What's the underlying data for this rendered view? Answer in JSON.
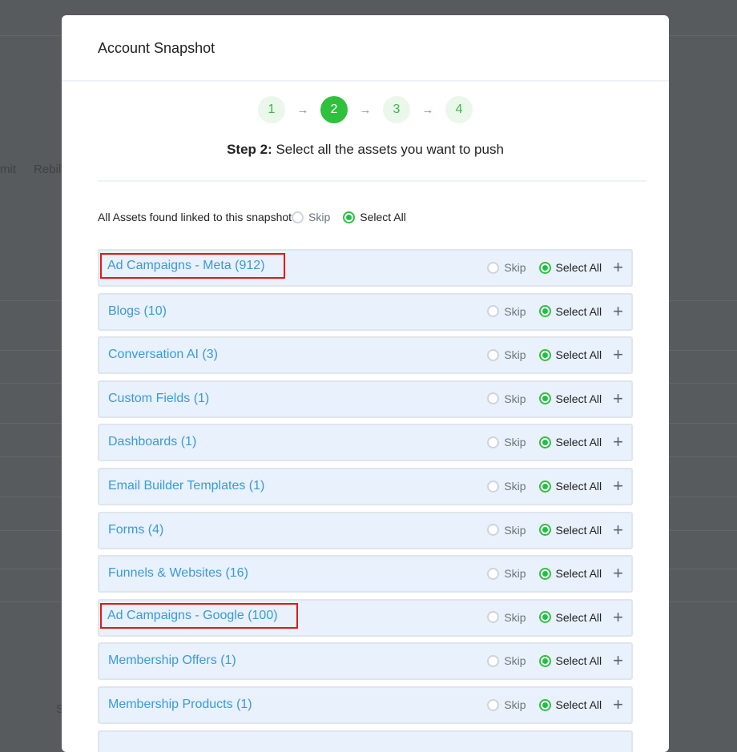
{
  "background": {
    "texts": [
      "mit",
      "Rebil",
      "S"
    ]
  },
  "modal": {
    "title": "Account Snapshot",
    "steps": [
      {
        "label": "1",
        "active": false
      },
      {
        "label": "2",
        "active": true
      },
      {
        "label": "3",
        "active": false
      },
      {
        "label": "4",
        "active": false
      }
    ],
    "arrow": "→",
    "step_title_bold": "Step 2:",
    "step_title_rest": " Select all the assets you want to push",
    "all_assets": {
      "label": "All Assets found linked to this snapshot",
      "skip": "Skip",
      "select_all": "Select All",
      "selected": "select_all"
    },
    "row_skip": "Skip",
    "row_select_all": "Select All",
    "row_expand": "+",
    "assets": [
      {
        "name": "Ad Campaigns - Meta (912)",
        "selected": "select_all",
        "highlighted": true
      },
      {
        "name": "Blogs (10)",
        "selected": "select_all",
        "highlighted": false
      },
      {
        "name": "Conversation AI (3)",
        "selected": "select_all",
        "highlighted": false
      },
      {
        "name": "Custom Fields (1)",
        "selected": "select_all",
        "highlighted": false
      },
      {
        "name": "Dashboards (1)",
        "selected": "select_all",
        "highlighted": false
      },
      {
        "name": "Email Builder Templates (1)",
        "selected": "select_all",
        "highlighted": false
      },
      {
        "name": "Forms (4)",
        "selected": "select_all",
        "highlighted": false
      },
      {
        "name": "Funnels & Websites (16)",
        "selected": "select_all",
        "highlighted": false
      },
      {
        "name": "Ad Campaigns - Google (100)",
        "selected": "select_all",
        "highlighted": true
      },
      {
        "name": "Membership Offers (1)",
        "selected": "select_all",
        "highlighted": false
      },
      {
        "name": "Membership Products (1)",
        "selected": "select_all",
        "highlighted": false
      }
    ],
    "colors": {
      "accent_green": "#2fc03d",
      "link_blue": "#3a9ad9",
      "highlight_red": "#e8141b",
      "row_bg": "#e8f1fc"
    }
  }
}
